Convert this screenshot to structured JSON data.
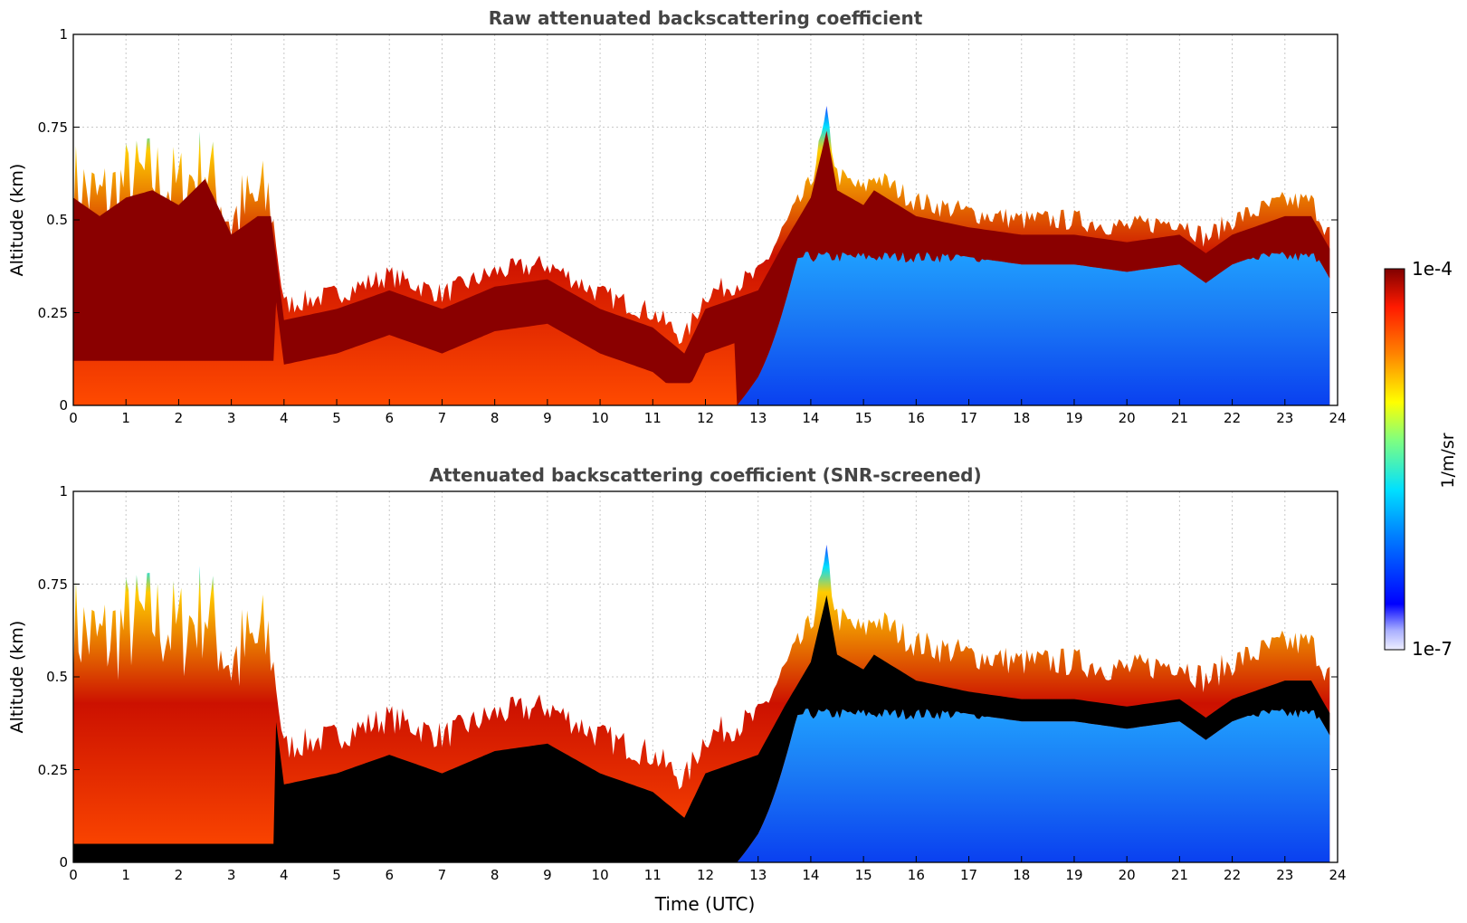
{
  "chart_data": [
    {
      "type": "heatmap",
      "title": "Raw attenuated backscattering coefficient",
      "xlabel": "",
      "ylabel": "Altitude (km)",
      "xlim": [
        0,
        24
      ],
      "ylim": [
        0,
        1
      ],
      "x_ticks": [
        "0",
        "1",
        "2",
        "3",
        "4",
        "5",
        "6",
        "7",
        "8",
        "9",
        "10",
        "11",
        "12",
        "13",
        "14",
        "15",
        "16",
        "17",
        "18",
        "19",
        "20",
        "21",
        "22",
        "23",
        "24"
      ],
      "y_ticks": [
        "0",
        "0.25",
        "0.5",
        "0.75",
        "1"
      ],
      "grid": true,
      "layer_top_km": {
        "x": [
          0,
          0.5,
          1,
          1.5,
          2,
          2.5,
          3,
          3.5,
          3.75,
          4,
          5,
          6,
          7,
          8,
          9,
          10,
          11,
          11.6,
          12,
          13,
          13.5,
          14,
          14.3,
          14.5,
          15,
          15.2,
          16,
          17,
          18,
          19,
          20,
          21,
          21.5,
          22,
          23,
          23.5,
          23.9
        ],
        "y": [
          0.6,
          0.55,
          0.6,
          0.62,
          0.58,
          0.65,
          0.5,
          0.55,
          0.55,
          0.27,
          0.3,
          0.35,
          0.3,
          0.36,
          0.38,
          0.3,
          0.25,
          0.18,
          0.3,
          0.35,
          0.48,
          0.6,
          0.78,
          0.62,
          0.58,
          0.62,
          0.55,
          0.52,
          0.5,
          0.5,
          0.48,
          0.5,
          0.45,
          0.5,
          0.55,
          0.55,
          0.45
        ]
      }
    },
    {
      "type": "heatmap",
      "title": "Attenuated backscattering coefficient (SNR-screened)",
      "xlabel": "Time (UTC)",
      "ylabel": "Altitude (km)",
      "xlim": [
        0,
        24
      ],
      "ylim": [
        0,
        1
      ],
      "x_ticks": [
        "0",
        "1",
        "2",
        "3",
        "4",
        "5",
        "6",
        "7",
        "8",
        "9",
        "10",
        "11",
        "12",
        "13",
        "14",
        "15",
        "16",
        "17",
        "18",
        "19",
        "20",
        "21",
        "22",
        "23",
        "24"
      ],
      "y_ticks": [
        "0",
        "0.25",
        "0.5",
        "0.75",
        "1"
      ],
      "grid": true
    }
  ],
  "colorbar": {
    "max_label": "1e-4",
    "min_label": "1e-7",
    "unit": "1/m/sr",
    "colormap": "jet",
    "scale": "log"
  }
}
